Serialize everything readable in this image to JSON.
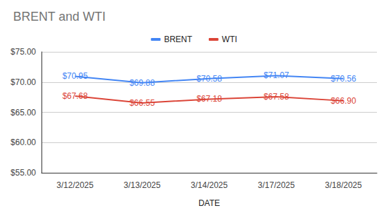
{
  "chart_data": {
    "type": "line",
    "title": "BRENT and WTI",
    "x_label": "DATE",
    "categories": [
      "3/12/2025",
      "3/13/2025",
      "3/14/2025",
      "3/17/2025",
      "3/18/2025"
    ],
    "series": [
      {
        "name": "BRENT",
        "color": "#4285f4",
        "values": [
          70.95,
          69.88,
          70.58,
          71.07,
          70.56
        ],
        "value_labels": [
          "$70.95",
          "$69.88",
          "$70.58",
          "$71.07",
          "$70.56"
        ]
      },
      {
        "name": "WTI",
        "color": "#db4437",
        "values": [
          67.68,
          66.55,
          67.18,
          67.58,
          66.9
        ],
        "value_labels": [
          "$67.68",
          "$66.55",
          "$67.18",
          "$67.58",
          "$66.90"
        ]
      }
    ],
    "ylim": [
      55,
      75
    ],
    "yticks": [
      {
        "value": 55,
        "label": "$55.00"
      },
      {
        "value": 60,
        "label": "$60.00"
      },
      {
        "value": 65,
        "label": "$65.00"
      },
      {
        "value": 70,
        "label": "$70.00"
      },
      {
        "value": 75,
        "label": "$75.00"
      }
    ],
    "grid": true,
    "legend": "top",
    "data_labels": true
  }
}
